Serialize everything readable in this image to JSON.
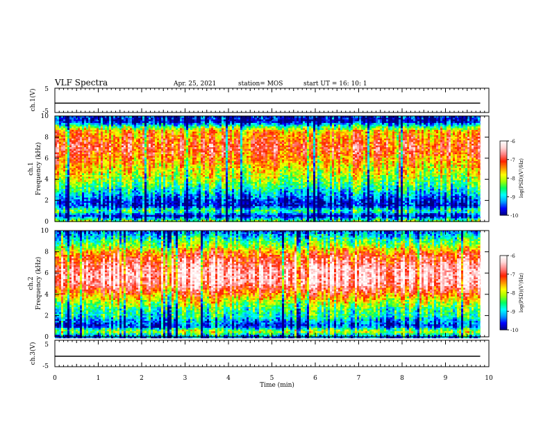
{
  "header": {
    "title": "VLF Spectra",
    "date": "Apr. 25, 2021",
    "station": "station= MOS",
    "start": "start  UT =   16: 10: 1"
  },
  "colors": {
    "scale": [
      "#000080",
      "#0000ff",
      "#00a0ff",
      "#00ffff",
      "#00ff60",
      "#a0ff00",
      "#ffff00",
      "#ff9000",
      "#ff2000",
      "#ff8080",
      "#ffd8d8",
      "#ffffff"
    ]
  },
  "chart_data": [
    {
      "id": "ch1-waveform",
      "type": "line",
      "ylabel": "ch.1(V)",
      "ylim": [
        -5,
        5
      ],
      "ytick_labels": [
        "5",
        "-5"
      ],
      "xlim": [
        0,
        10
      ],
      "series": [
        {
          "x": [
            0,
            9.8
          ],
          "y": [
            0,
            0
          ]
        }
      ]
    },
    {
      "id": "ch1-spectrogram",
      "type": "heatmap",
      "ylabel_top": "ch.1",
      "ylabel": "Frequency  (kHz)",
      "ylim": [
        0,
        10
      ],
      "ytick_labels": [
        "0",
        "2",
        "4",
        "6",
        "8",
        "10"
      ],
      "xlim": [
        0,
        10
      ],
      "data_xmax": 9.8,
      "band_profile": {
        "freq_khz": [
          0,
          0.5,
          1,
          1.5,
          2,
          2.5,
          3,
          3.5,
          4,
          4.5,
          5,
          5.5,
          6,
          6.5,
          7,
          7.5,
          8,
          8.5,
          9,
          9.5,
          10
        ],
        "log_psd": [
          -8.2,
          -9.9,
          -8.6,
          -9.8,
          -9.7,
          -9.2,
          -8.9,
          -8.5,
          -8.2,
          -8.0,
          -7.8,
          -7.6,
          -7.4,
          -7.2,
          -7.0,
          -7.2,
          -7.4,
          -7.5,
          -8.6,
          -10.0,
          -9.6
        ]
      },
      "colorbar": {
        "label": "log(PSD)(V²/Hz)",
        "range": [
          -10,
          -6
        ],
        "tick_labels": [
          "-6",
          "-7",
          "-8",
          "-9",
          "-10"
        ]
      }
    },
    {
      "id": "ch2-spectrogram",
      "type": "heatmap",
      "ylabel_top": "ch.2",
      "ylabel": "Frequency  (kHz)",
      "ylim": [
        0,
        10
      ],
      "ytick_labels": [
        "0",
        "2",
        "4",
        "6",
        "8",
        "10"
      ],
      "xlim": [
        0,
        10
      ],
      "data_xmax": 9.8,
      "band_profile": {
        "freq_khz": [
          0,
          0.5,
          1,
          1.5,
          2,
          2.5,
          3,
          3.5,
          4,
          4.5,
          5,
          5.5,
          6,
          6.5,
          7,
          7.5,
          8,
          8.5,
          9,
          9.5,
          10
        ],
        "log_psd": [
          -9.4,
          -8.0,
          -9.6,
          -9.2,
          -8.7,
          -8.6,
          -8.2,
          -7.8,
          -7.3,
          -6.9,
          -6.5,
          -6.4,
          -6.4,
          -6.5,
          -6.8,
          -7.0,
          -7.4,
          -8.1,
          -8.5,
          -9.0,
          -9.5
        ]
      },
      "colorbar": {
        "label": "log(PSD)(V²/Hz)",
        "range": [
          -10,
          -6
        ],
        "tick_labels": [
          "-6",
          "-7",
          "-8",
          "-9",
          "-10"
        ]
      }
    },
    {
      "id": "ch3-waveform",
      "type": "line",
      "ylabel": "ch.3(V)",
      "ylim": [
        -5,
        5
      ],
      "ytick_labels": [
        "5",
        "-5"
      ],
      "xlim": [
        0,
        10
      ],
      "xlabel": "Time  (min)",
      "xtick_labels": [
        "0",
        "1",
        "2",
        "3",
        "4",
        "5",
        "6",
        "7",
        "8",
        "9",
        "10"
      ],
      "series": [
        {
          "x": [
            0,
            9.8
          ],
          "y": [
            0,
            0
          ]
        }
      ]
    }
  ]
}
